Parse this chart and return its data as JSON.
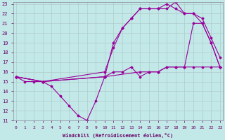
{
  "xlabel": "Windchill (Refroidissement éolien,°C)",
  "background_color": "#c2e8e8",
  "grid_color": "#b0cccc",
  "line_color": "#990099",
  "xmin": 0,
  "xmax": 23,
  "ymin": 11,
  "ymax": 23,
  "lines": [
    {
      "x": [
        0,
        1,
        2,
        3,
        4,
        5,
        6,
        7,
        8,
        9,
        10,
        11,
        12,
        13,
        14,
        15,
        16,
        17,
        18,
        19,
        20,
        21,
        22,
        23
      ],
      "y": [
        15.5,
        15,
        15,
        15,
        14.5,
        13.5,
        12.5,
        11.5,
        11,
        13,
        15.5,
        16,
        16,
        16.5,
        15.5,
        16,
        16,
        16.5,
        16.5,
        16.5,
        16.5,
        16.5,
        16.5,
        16.5
      ]
    },
    {
      "x": [
        0,
        3,
        10,
        14,
        15,
        16,
        17,
        18,
        19,
        20,
        21,
        22,
        23
      ],
      "y": [
        15.5,
        15,
        15.5,
        16,
        16,
        16,
        16.5,
        16.5,
        16.5,
        21,
        21,
        19,
        16.5
      ]
    },
    {
      "x": [
        0,
        3,
        10,
        11,
        12,
        13,
        14,
        15,
        16,
        17,
        18,
        19,
        20,
        21,
        22,
        23
      ],
      "y": [
        15.5,
        15,
        16,
        18.5,
        20.5,
        21.5,
        22.5,
        22.5,
        22.5,
        23,
        22.5,
        22,
        22,
        21.5,
        19.5,
        17.5
      ]
    },
    {
      "x": [
        0,
        3,
        10,
        11,
        12,
        13,
        14,
        15,
        16,
        17,
        18,
        19,
        20,
        21,
        22,
        23
      ],
      "y": [
        15.5,
        15,
        15.5,
        19,
        20.5,
        21.5,
        22.5,
        22.5,
        22.5,
        22.5,
        23.2,
        22,
        22,
        21,
        19,
        16.5
      ]
    }
  ]
}
